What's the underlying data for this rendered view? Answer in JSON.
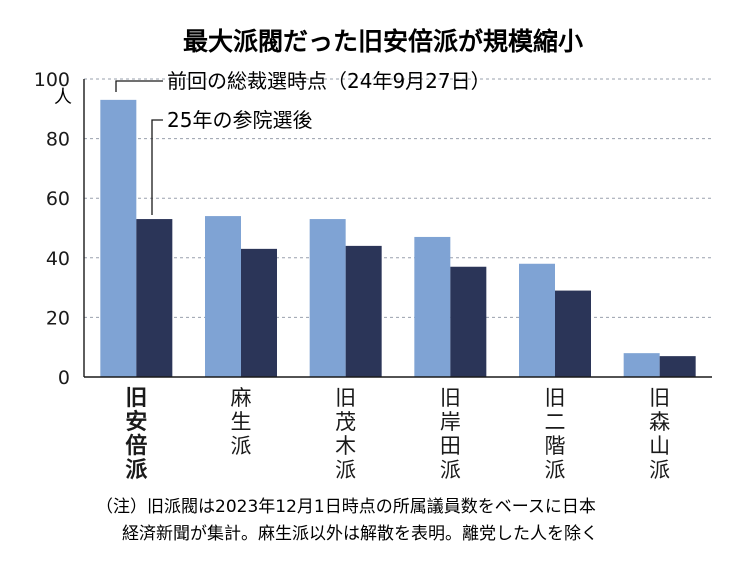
{
  "chart_data": {
    "type": "bar",
    "title": "最大派閥だった旧安倍派が規模縮小",
    "ylabel": "人",
    "ylim": [
      0,
      100
    ],
    "yticks": [
      0,
      20,
      40,
      60,
      80,
      100
    ],
    "grid": true,
    "categories": [
      "旧安倍派",
      "麻生派",
      "旧茂木派",
      "旧岸田派",
      "旧二階派",
      "旧森山派"
    ],
    "series": [
      {
        "name": "前回の総裁選時点（24年9月27日）",
        "values": [
          93,
          54,
          53,
          47,
          38,
          8
        ]
      },
      {
        "name": "25年の参院選後",
        "values": [
          53,
          43,
          44,
          37,
          29,
          7
        ]
      }
    ],
    "note": [
      "（注）旧派閥は2023年12月1日時点の所属議員数をベースに日本",
      "経済新聞が集計。麻生派以外は解散を表明。離党した人を除く"
    ]
  },
  "colors": {
    "series_1": "#7fa3d4",
    "series_2": "#2b3558",
    "grid": "#9aa0ad",
    "axis": "#1a1a1a",
    "text": "#1a1a1a"
  }
}
